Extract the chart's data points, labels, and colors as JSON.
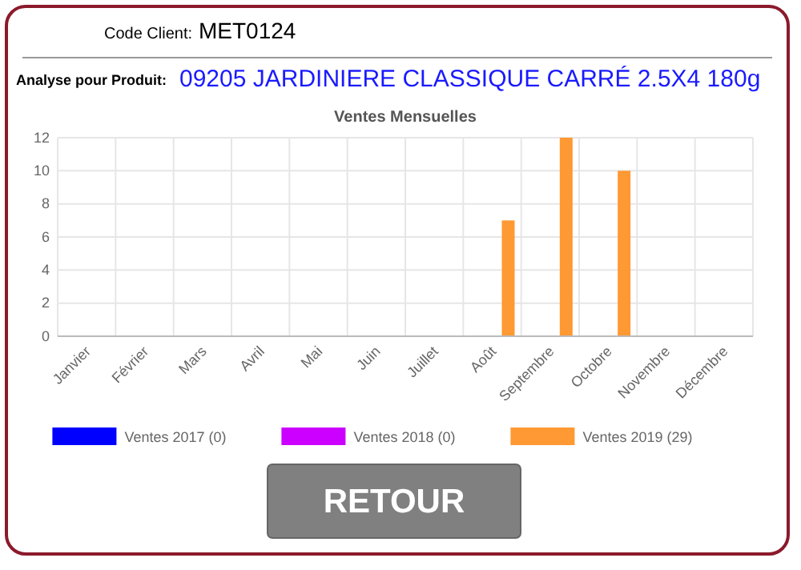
{
  "chart_data": {
    "type": "bar",
    "title": "Ventes Mensuelles",
    "annotations": [
      "Code Client:",
      "MET0124",
      "Analyse pour Produit:",
      "09205 JARDINIERE CLASSIQUE CARRÉ 2.5X4 180g",
      "RETOUR"
    ],
    "categories": [
      "Janvier",
      "Février",
      "Mars",
      "Avril",
      "Mai",
      "Juin",
      "Juillet",
      "Août",
      "Septembre",
      "Octobre",
      "Novembre",
      "Décembre"
    ],
    "series": [
      {
        "name": "Ventes 2017 (0)",
        "color": "#0000ff",
        "values": [
          0,
          0,
          0,
          0,
          0,
          0,
          0,
          0,
          0,
          0,
          0,
          0
        ]
      },
      {
        "name": "Ventes 2018 (0)",
        "color": "#cc00ff",
        "values": [
          0,
          0,
          0,
          0,
          0,
          0,
          0,
          0,
          0,
          0,
          0,
          0
        ]
      },
      {
        "name": "Ventes 2019 (29)",
        "color": "#ff9933",
        "values": [
          0,
          0,
          0,
          0,
          0,
          0,
          0,
          7,
          12,
          10,
          0,
          0
        ]
      }
    ],
    "ylim": [
      0,
      12
    ],
    "yticks": [
      0,
      2,
      4,
      6,
      8,
      10,
      12
    ],
    "grid": true,
    "legend": "bottom"
  }
}
